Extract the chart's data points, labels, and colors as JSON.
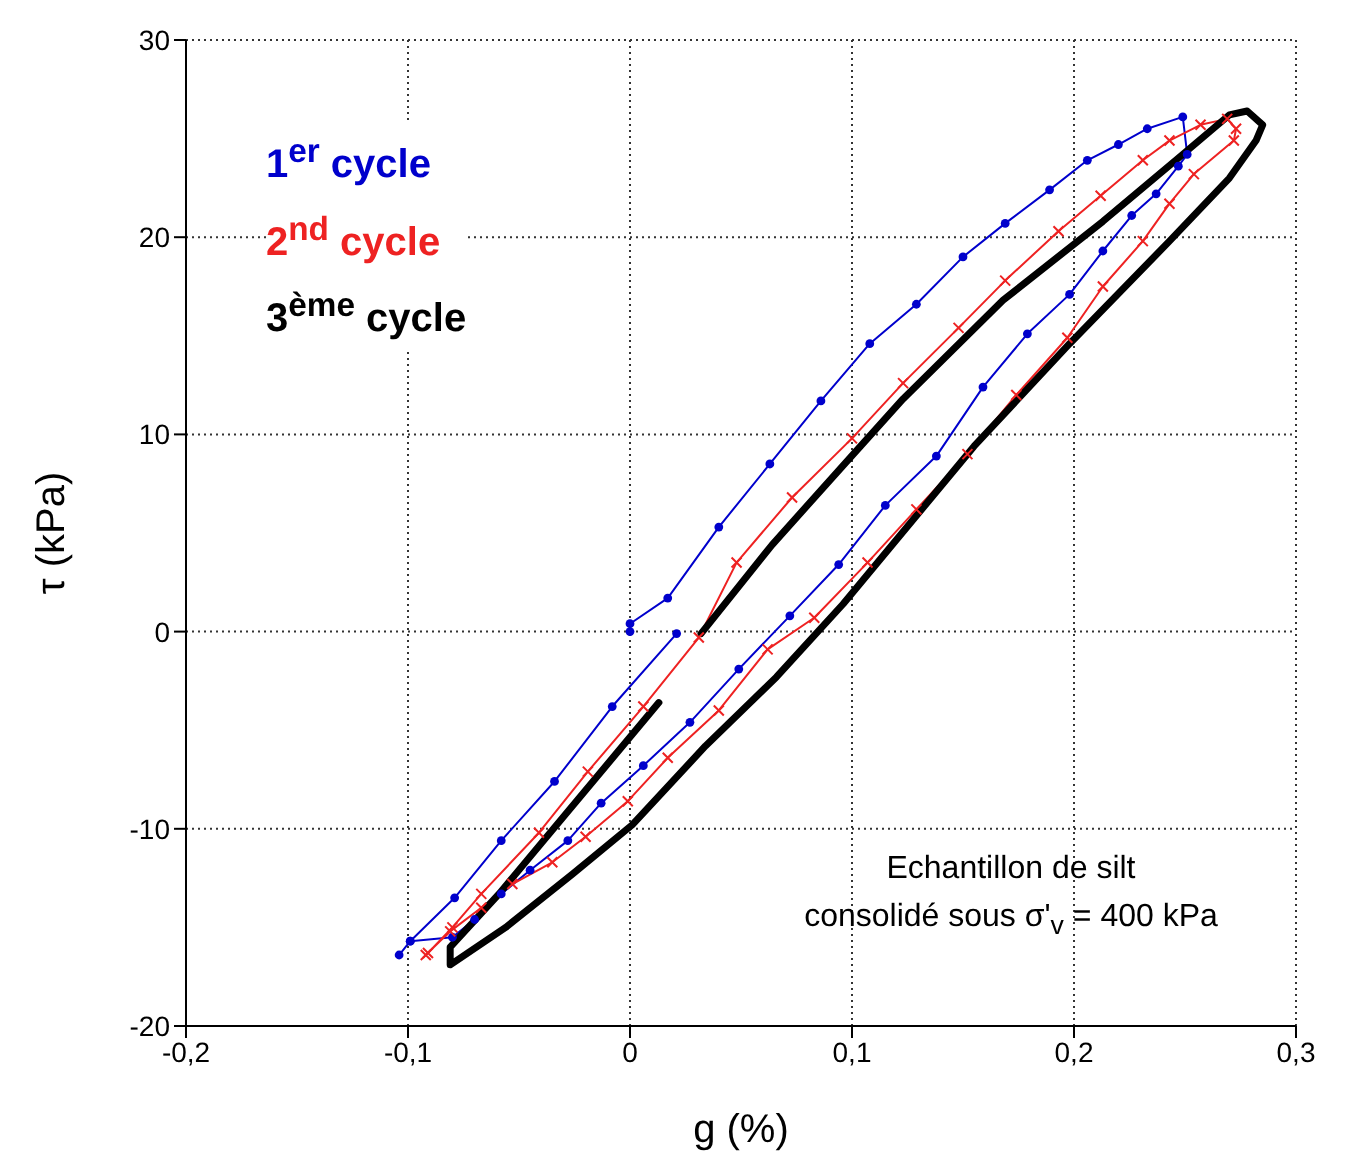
{
  "chart_data": {
    "type": "line",
    "xlabel": "g (%)",
    "ylabel": "τ  (kPa)",
    "xlim": [
      -0.2,
      0.3
    ],
    "xticks": [
      {
        "value": -0.2,
        "label": "-0,2"
      },
      {
        "value": -0.1,
        "label": "-0,1"
      },
      0,
      {
        "value": 0.1,
        "label": "0,1"
      },
      {
        "value": 0.2,
        "label": "0,2"
      },
      {
        "value": 0.3,
        "label": "0,3"
      }
    ],
    "ylim": [
      -20,
      30
    ],
    "yticks": [
      -20,
      -10,
      0,
      10,
      20,
      30
    ],
    "grid": true,
    "legend": "top left",
    "annotations": [
      "Echantillon de silt",
      "consolidé sous σ'$_{v}$ = 400 kPa"
    ],
    "series": [
      {
        "name": "1$^{er}$ cycle",
        "color": "#0000cc",
        "marker": "circle",
        "x": [
          0,
          0,
          0.017,
          0.04,
          0.063,
          0.086,
          0.108,
          0.129,
          0.15,
          0.169,
          0.189,
          0.206,
          0.22,
          0.233,
          0.249,
          0.251,
          0.247,
          0.237,
          0.226,
          0.213,
          0.198,
          0.179,
          0.159,
          0.138,
          0.115,
          0.094,
          0.072,
          0.049,
          0.027,
          0.006,
          -0.013,
          -0.028,
          -0.045,
          -0.058,
          -0.07,
          -0.08,
          -0.099,
          -0.104,
          -0.099,
          -0.079,
          -0.058,
          -0.034,
          -0.008,
          0.021
        ],
        "values": [
          0,
          0.4,
          1.7,
          5.3,
          8.5,
          11.7,
          14.6,
          16.6,
          19,
          20.7,
          22.4,
          23.9,
          24.7,
          25.5,
          26.1,
          24.2,
          23.6,
          22.2,
          21.1,
          19.3,
          17.1,
          15.1,
          12.4,
          8.9,
          6.4,
          3.4,
          0.8,
          -1.9,
          -4.6,
          -6.8,
          -8.7,
          -10.6,
          -12.1,
          -13.3,
          -14.6,
          -15.5,
          -15.7,
          -16.4,
          -15.7,
          -13.5,
          -10.6,
          -7.6,
          -3.8,
          -0.1
        ]
      },
      {
        "name": "2$^{nd}$ cycle",
        "color": "#ee2222",
        "marker": "cross",
        "x": [
          -0.091,
          -0.08,
          -0.067,
          -0.041,
          -0.019,
          0.006,
          0.031,
          0.048,
          0.073,
          0.1,
          0.123,
          0.148,
          0.169,
          0.193,
          0.212,
          0.231,
          0.243,
          0.257,
          0.269,
          0.273,
          0.272,
          0.254,
          0.243,
          0.231,
          0.213,
          0.197,
          0.174,
          0.152,
          0.129,
          0.107,
          0.083,
          0.062,
          0.04,
          0.017,
          -0.001,
          -0.02,
          -0.035,
          -0.053,
          -0.067,
          -0.081,
          -0.092
        ],
        "values": [
          -16.3,
          -15,
          -13.3,
          -10.2,
          -7.1,
          -3.8,
          -0.3,
          3.5,
          6.8,
          9.8,
          12.6,
          15.4,
          17.8,
          20.3,
          22.1,
          23.9,
          24.9,
          25.7,
          26,
          25.5,
          24.9,
          23.2,
          21.7,
          19.8,
          17.5,
          14.9,
          12,
          9,
          6.2,
          3.5,
          0.7,
          -0.9,
          -4,
          -6.4,
          -8.6,
          -10.4,
          -11.7,
          -12.8,
          -14,
          -15.2,
          -16.4
        ]
      },
      {
        "name": "3$^{ème}$ cycle",
        "color": "#000000",
        "marker": "none",
        "x": [
          0.013,
          -0.059,
          -0.081,
          -0.081,
          -0.056,
          -0.026,
          0.001,
          0.034,
          0.066,
          0.096,
          0.155,
          0.198,
          0.243,
          0.27,
          0.282,
          0.285,
          0.278,
          0.27,
          0.249,
          0.213,
          0.168,
          0.123,
          0.099,
          0.064,
          0.032
        ],
        "values": [
          -3.6,
          -13.3,
          -16,
          -16.9,
          -15,
          -12.3,
          -9.8,
          -5.8,
          -2.3,
          1.4,
          9.4,
          14.6,
          19.8,
          23,
          24.9,
          25.7,
          26.4,
          26.2,
          24.2,
          20.8,
          16.8,
          11.8,
          8.8,
          4.4,
          -0.1
        ]
      }
    ]
  }
}
